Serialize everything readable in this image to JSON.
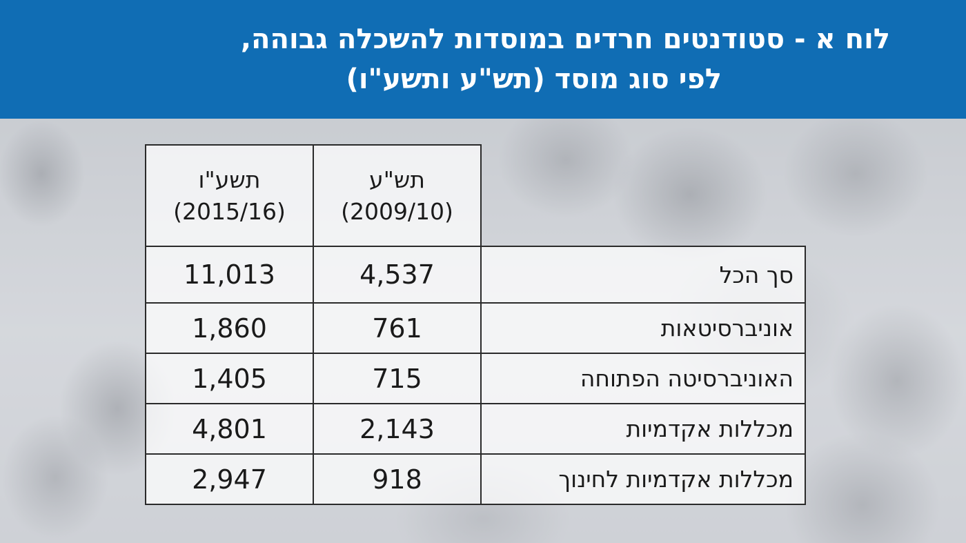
{
  "header": {
    "title_line1": "לוח א - סטודנטים חרדים במוסדות להשכלה גבוהה,",
    "title_line2": "לפי סוג מוסד (תש\"ע ותשע\"ו)"
  },
  "colors": {
    "header_bg": "#106db4",
    "header_text": "#ffffff",
    "border": "#2a2a2a"
  },
  "chart_data": {
    "type": "table",
    "title": "לוח א - סטודנטים חרדים במוסדות להשכלה גבוהה, לפי סוג מוסד (תש\"ע ותשע\"ו)",
    "columns": [
      {
        "year": "תש\"ע",
        "period": "(2009/10)"
      },
      {
        "year": "תשע\"ו",
        "period": "(2015/16)"
      }
    ],
    "rows": [
      {
        "label": "סך הכל",
        "values": [
          "4,537",
          "11,013"
        ]
      },
      {
        "label": "אוניברסיטאות",
        "values": [
          "761",
          "1,860"
        ]
      },
      {
        "label": "האוניברסיטה הפתוחה",
        "values": [
          "715",
          "1,405"
        ]
      },
      {
        "label": "מכללות אקדמיות",
        "values": [
          "2,143",
          "4,801"
        ]
      },
      {
        "label": "מכללות אקדמיות לחינוך",
        "values": [
          "918",
          "2,947"
        ]
      }
    ]
  }
}
